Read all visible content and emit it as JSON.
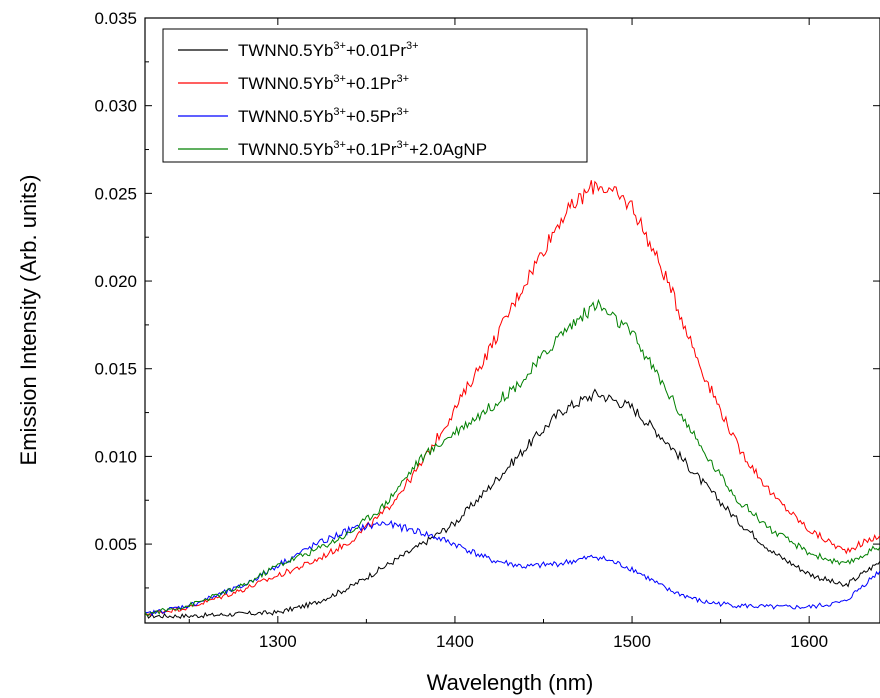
{
  "chart_data": {
    "type": "line",
    "xlabel": "Wavelength (nm)",
    "ylabel": "Emission Intensity (Arb. units)",
    "xlim": [
      1225,
      1640
    ],
    "ylim": [
      0.0005,
      0.035
    ],
    "x_ticks": [
      1300,
      1400,
      1500,
      1600
    ],
    "x_tick_labels": [
      "1300",
      "1400",
      "1500",
      "1600"
    ],
    "y_ticks": [
      0.005,
      0.01,
      0.015,
      0.02,
      0.025,
      0.03,
      0.035
    ],
    "y_tick_labels": [
      "0.005",
      "0.010",
      "0.015",
      "0.020",
      "0.025",
      "0.030",
      "0.035"
    ],
    "legend_position": "top-left",
    "series": [
      {
        "name": "TWNN0.5Yb3++0.01Pr3+",
        "legend": {
          "base": "TWNN0.5Yb",
          "sup1": "3+",
          "mid": "+0.01Pr",
          "sup2": "3+",
          "tail": ""
        },
        "color": "#000000",
        "x": [
          1225,
          1250,
          1300,
          1320,
          1340,
          1360,
          1380,
          1400,
          1420,
          1440,
          1460,
          1480,
          1500,
          1520,
          1540,
          1560,
          1580,
          1600,
          1620,
          1640
        ],
        "y": [
          0.0009,
          0.0009,
          0.0011,
          0.0016,
          0.0025,
          0.0037,
          0.0049,
          0.0062,
          0.0083,
          0.0105,
          0.0126,
          0.0136,
          0.0128,
          0.0108,
          0.0085,
          0.0063,
          0.0045,
          0.0033,
          0.0026,
          0.004
        ]
      },
      {
        "name": "TWNN0.5Yb3++0.1Pr3+",
        "legend": {
          "base": "TWNN0.5Yb",
          "sup1": "3+",
          "mid": "+0.1Pr",
          "sup2": "3+",
          "tail": ""
        },
        "color": "#ff0000",
        "x": [
          1225,
          1250,
          1280,
          1300,
          1320,
          1340,
          1360,
          1380,
          1400,
          1420,
          1440,
          1460,
          1480,
          1500,
          1520,
          1540,
          1560,
          1580,
          1600,
          1620,
          1640
        ],
        "y": [
          0.001,
          0.0014,
          0.0024,
          0.0032,
          0.004,
          0.0051,
          0.0068,
          0.0094,
          0.0127,
          0.0162,
          0.02,
          0.0236,
          0.0256,
          0.0243,
          0.02,
          0.0148,
          0.0105,
          0.0077,
          0.0058,
          0.0046,
          0.0055
        ]
      },
      {
        "name": "TWNN0.5Yb3++0.5Pr3+",
        "legend": {
          "base": "TWNN0.5Yb",
          "sup1": "3+",
          "mid": "+0.5Pr",
          "sup2": "3+",
          "tail": ""
        },
        "color": "#0000ff",
        "x": [
          1225,
          1250,
          1280,
          1300,
          1320,
          1340,
          1360,
          1380,
          1400,
          1420,
          1440,
          1460,
          1480,
          1500,
          1520,
          1540,
          1560,
          1580,
          1600,
          1620,
          1640
        ],
        "y": [
          0.001,
          0.0015,
          0.0026,
          0.0038,
          0.0049,
          0.0058,
          0.0062,
          0.0057,
          0.005,
          0.0041,
          0.0037,
          0.0039,
          0.0043,
          0.0036,
          0.0024,
          0.0017,
          0.0015,
          0.0014,
          0.0014,
          0.0017,
          0.0035
        ]
      },
      {
        "name": "TWNN0.5Yb3++0.1Pr3++2.0AgNP",
        "legend": {
          "base": "TWNN0.5Yb",
          "sup1": "3+",
          "mid": "+0.1Pr",
          "sup2": "3+",
          "tail": "+2.0AgNP"
        },
        "color": "#008000",
        "x": [
          1225,
          1250,
          1280,
          1300,
          1320,
          1340,
          1360,
          1380,
          1400,
          1420,
          1440,
          1460,
          1480,
          1500,
          1520,
          1540,
          1560,
          1580,
          1600,
          1620,
          1640
        ],
        "y": [
          0.001,
          0.0015,
          0.0026,
          0.0038,
          0.0046,
          0.0056,
          0.0072,
          0.0098,
          0.0114,
          0.0128,
          0.0145,
          0.017,
          0.0187,
          0.017,
          0.0137,
          0.0103,
          0.0075,
          0.0057,
          0.0045,
          0.0038,
          0.0049
        ]
      }
    ]
  }
}
